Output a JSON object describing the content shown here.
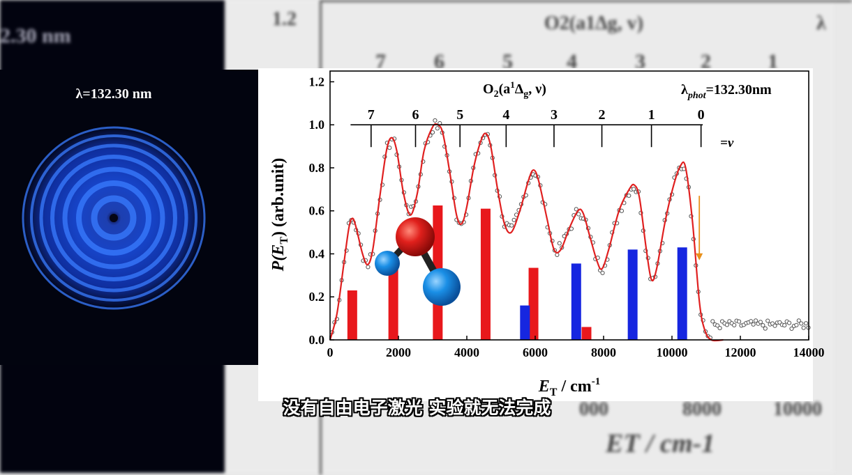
{
  "detector_image": {
    "label": "λ=132.30 nm",
    "background_label": "2.30 nm"
  },
  "subtitle": "没有自由电子激光 实验就无法完成",
  "background_chart": {
    "top_tick": "1.2",
    "title": "O2(a1Δg, v)",
    "lambda": "λ",
    "v_labels": [
      "7",
      "6",
      "5",
      "4",
      "3",
      "2",
      "1"
    ],
    "x_ticks": [
      "000",
      "8000",
      "10000"
    ],
    "xlabel": "ET / cm-1"
  },
  "chart_data": {
    "type": "line",
    "xlabel_main": "E",
    "xlabel_sub": "T",
    "xlabel_unit": " / cm",
    "xlabel_sup": "-1",
    "ylabel_main": "P(E",
    "ylabel_sub": "T",
    "ylabel_rest": ") (arb.unit)",
    "xlim": [
      0,
      14000
    ],
    "ylim": [
      0,
      1.25
    ],
    "x_ticks": [
      0,
      2000,
      4000,
      6000,
      8000,
      10000,
      12000,
      14000
    ],
    "y_ticks": [
      "0.0",
      "0.2",
      "0.4",
      "0.6",
      "0.8",
      "1.0",
      "1.2"
    ],
    "annotation_title": {
      "main": "O",
      "sub": "2",
      "rest1": "(a",
      "sup": "1",
      "delta": "Δ",
      "sub2": "g",
      "rest2": ", ν)"
    },
    "annotation_lambda": {
      "main": "λ",
      "sub": "phot",
      "rest": "=132.30nm"
    },
    "nu_label": "=ν",
    "comb": {
      "y": 1.0,
      "x_start": 600,
      "x_end": 10900,
      "ticks": [
        {
          "label": "7",
          "x": 1200
        },
        {
          "label": "6",
          "x": 2500
        },
        {
          "label": "5",
          "x": 3800
        },
        {
          "label": "4",
          "x": 5150
        },
        {
          "label": "3",
          "x": 6550
        },
        {
          "label": "2",
          "x": 7950
        },
        {
          "label": "1",
          "x": 9400
        },
        {
          "label": "0",
          "x": 10850
        }
      ]
    },
    "red_bars": [
      {
        "x": 650,
        "y": 0.23
      },
      {
        "x": 1850,
        "y": 0.36
      },
      {
        "x": 3150,
        "y": 0.625
      },
      {
        "x": 4550,
        "y": 0.61
      },
      {
        "x": 5950,
        "y": 0.335
      },
      {
        "x": 7500,
        "y": 0.06
      }
    ],
    "blue_bars": [
      {
        "x": 5700,
        "y": 0.16
      },
      {
        "x": 7200,
        "y": 0.355
      },
      {
        "x": 8850,
        "y": 0.42
      },
      {
        "x": 10300,
        "y": 0.43
      }
    ],
    "fit_curve": {
      "color": "#e02020",
      "points": [
        [
          0,
          0.0
        ],
        [
          200,
          0.12
        ],
        [
          400,
          0.35
        ],
        [
          550,
          0.52
        ],
        [
          650,
          0.565
        ],
        [
          750,
          0.53
        ],
        [
          950,
          0.4
        ],
        [
          1100,
          0.35
        ],
        [
          1250,
          0.42
        ],
        [
          1450,
          0.66
        ],
        [
          1650,
          0.88
        ],
        [
          1800,
          0.94
        ],
        [
          1950,
          0.88
        ],
        [
          2150,
          0.68
        ],
        [
          2350,
          0.58
        ],
        [
          2550,
          0.68
        ],
        [
          2750,
          0.88
        ],
        [
          3000,
          0.99
        ],
        [
          3150,
          1.0
        ],
        [
          3300,
          0.96
        ],
        [
          3500,
          0.78
        ],
        [
          3700,
          0.58
        ],
        [
          3850,
          0.54
        ],
        [
          4000,
          0.62
        ],
        [
          4200,
          0.8
        ],
        [
          4400,
          0.92
        ],
        [
          4550,
          0.96
        ],
        [
          4700,
          0.9
        ],
        [
          4900,
          0.7
        ],
        [
          5100,
          0.54
        ],
        [
          5300,
          0.5
        ],
        [
          5550,
          0.6
        ],
        [
          5800,
          0.74
        ],
        [
          5950,
          0.79
        ],
        [
          6100,
          0.74
        ],
        [
          6350,
          0.56
        ],
        [
          6550,
          0.42
        ],
        [
          6750,
          0.42
        ],
        [
          7000,
          0.52
        ],
        [
          7250,
          0.6
        ],
        [
          7400,
          0.59
        ],
        [
          7600,
          0.48
        ],
        [
          7800,
          0.37
        ],
        [
          7950,
          0.33
        ],
        [
          8150,
          0.42
        ],
        [
          8450,
          0.6
        ],
        [
          8750,
          0.7
        ],
        [
          8900,
          0.72
        ],
        [
          9050,
          0.66
        ],
        [
          9250,
          0.42
        ],
        [
          9400,
          0.28
        ],
        [
          9550,
          0.33
        ],
        [
          9800,
          0.55
        ],
        [
          10050,
          0.72
        ],
        [
          10250,
          0.81
        ],
        [
          10400,
          0.8
        ],
        [
          10600,
          0.55
        ],
        [
          10800,
          0.18
        ],
        [
          10950,
          0.05
        ],
        [
          11150,
          0.0
        ],
        [
          11500,
          0.0
        ]
      ]
    },
    "arrow": {
      "x": 10800,
      "y_from": 0.67,
      "y_to": 0.37,
      "color": "#e8901a"
    },
    "molecule": {
      "center_color": "#e0201c",
      "side_color": "#1a8fe6"
    }
  }
}
